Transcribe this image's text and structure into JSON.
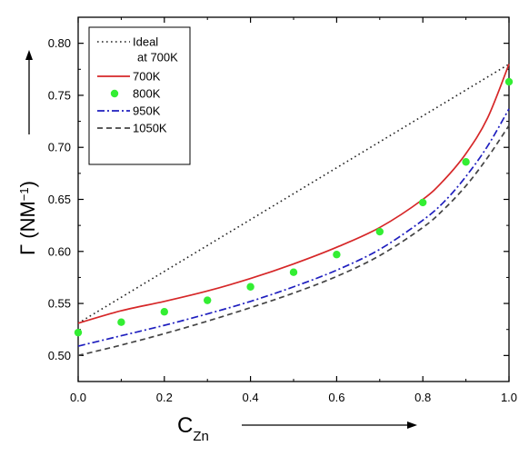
{
  "chart_data": {
    "type": "line",
    "title": "",
    "xlabel": "C",
    "xlabel_subscript": "Zn",
    "ylabel": "Γ (NM",
    "ylabel_superscript": "−1",
    "ylabel_suffix": ")",
    "xlim": [
      0.0,
      1.0
    ],
    "ylim": [
      0.475,
      0.825
    ],
    "xticks": [
      0.0,
      0.2,
      0.4,
      0.6,
      0.8,
      1.0
    ],
    "xtick_labels": [
      "0.0",
      "0.2",
      "0.4",
      "0.6",
      "0.8",
      "1.0"
    ],
    "yticks": [
      0.5,
      0.55,
      0.6,
      0.65,
      0.7,
      0.75,
      0.8
    ],
    "ytick_labels": [
      "0.50",
      "0.55",
      "0.60",
      "0.65",
      "0.70",
      "0.75",
      "0.80"
    ],
    "grid": false,
    "legend_position": "top-left",
    "series": [
      {
        "name": "Ideal\nat 700K",
        "style": "dotted",
        "color": "#222222",
        "x": [
          0.0,
          1.0
        ],
        "y": [
          0.531,
          0.78
        ]
      },
      {
        "name": "700K",
        "style": "solid",
        "color": "#d62728",
        "x": [
          0.0,
          0.1,
          0.2,
          0.3,
          0.4,
          0.5,
          0.6,
          0.7,
          0.8,
          0.85,
          0.9,
          0.95,
          1.0
        ],
        "y": [
          0.531,
          0.543,
          0.552,
          0.562,
          0.574,
          0.588,
          0.604,
          0.623,
          0.65,
          0.669,
          0.694,
          0.728,
          0.78
        ]
      },
      {
        "name": "800K",
        "style": "markers",
        "color": "#33ee33",
        "x": [
          0.0,
          0.1,
          0.2,
          0.3,
          0.4,
          0.5,
          0.6,
          0.7,
          0.8,
          0.9,
          1.0
        ],
        "y": [
          0.522,
          0.532,
          0.542,
          0.553,
          0.566,
          0.58,
          0.597,
          0.619,
          0.647,
          0.686,
          0.763
        ]
      },
      {
        "name": "950K",
        "style": "dashdot",
        "color": "#1f1fbf",
        "x": [
          0.0,
          0.1,
          0.2,
          0.3,
          0.4,
          0.5,
          0.6,
          0.7,
          0.8,
          0.85,
          0.9,
          0.95,
          1.0
        ],
        "y": [
          0.509,
          0.519,
          0.529,
          0.54,
          0.552,
          0.566,
          0.582,
          0.602,
          0.63,
          0.648,
          0.672,
          0.701,
          0.737
        ]
      },
      {
        "name": "1050K",
        "style": "dashed",
        "color": "#444444",
        "x": [
          0.0,
          0.1,
          0.2,
          0.3,
          0.4,
          0.5,
          0.6,
          0.7,
          0.8,
          0.85,
          0.9,
          0.95,
          1.0
        ],
        "y": [
          0.5,
          0.51,
          0.521,
          0.533,
          0.546,
          0.56,
          0.576,
          0.596,
          0.623,
          0.641,
          0.663,
          0.69,
          0.721
        ]
      }
    ]
  }
}
